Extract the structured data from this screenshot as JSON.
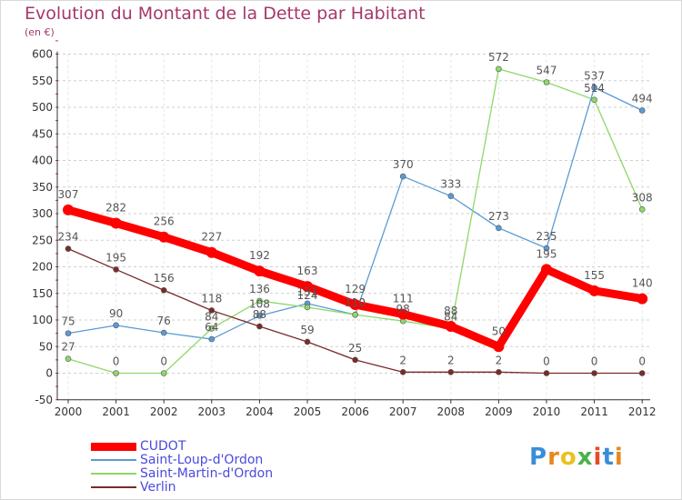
{
  "title": "Evolution du Montant de la Dette par Habitant",
  "unit": "(en €)",
  "logo": {
    "text": "Proxiti",
    "colors": [
      "#3a8ed8",
      "#e8871f",
      "#e8c21f",
      "#4ab24a",
      "#e84a2a",
      "#3a8ed8",
      "#e8871f"
    ]
  },
  "colors": {
    "title": "#a4386b",
    "axis": "#333333",
    "grid": "#cfcfcf",
    "label": "#555555",
    "legend_text": "#4a4adf"
  },
  "chart_data": {
    "type": "line",
    "title": "Evolution du Montant de la Dette par Habitant",
    "ylabel": "(en €)",
    "xlabel": "",
    "categories": [
      "2000",
      "2001",
      "2002",
      "2003",
      "2004",
      "2005",
      "2006",
      "2007",
      "2008",
      "2009",
      "2010",
      "2011",
      "2012"
    ],
    "ylim": [
      -50,
      600
    ],
    "yticks": [
      -50,
      0,
      50,
      100,
      150,
      200,
      250,
      300,
      350,
      400,
      450,
      500,
      550,
      600
    ],
    "grid": "horizontal dashed",
    "legend_position": "bottom-left",
    "series": [
      {
        "name": "CUDOT",
        "color": "#ff0000",
        "values": [
          307,
          282,
          256,
          227,
          192,
          163,
          129,
          111,
          88,
          50,
          195,
          155,
          140
        ]
      },
      {
        "name": "Saint-Loup-d'Ordon",
        "color": "#5a9bd6",
        "values": [
          75,
          90,
          76,
          64,
          108,
          131,
          110,
          370,
          333,
          273,
          235,
          537,
          494
        ]
      },
      {
        "name": "Saint-Martin-d'Ordon",
        "color": "#8ed86a",
        "values": [
          27,
          0,
          0,
          84,
          136,
          124,
          110,
          98,
          84,
          572,
          547,
          514,
          308
        ]
      },
      {
        "name": "Verlin",
        "color": "#7a2a2a",
        "values": [
          234,
          195,
          156,
          118,
          88,
          59,
          25,
          2,
          2,
          2,
          0,
          0,
          0
        ]
      }
    ]
  }
}
